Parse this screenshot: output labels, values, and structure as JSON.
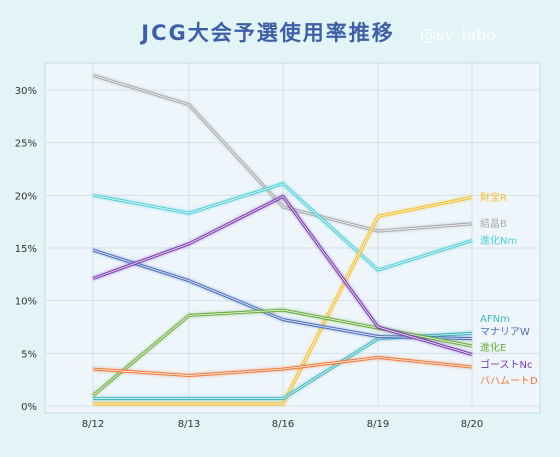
{
  "chart_data": {
    "type": "line",
    "title": "JCG大会予選使用率推移",
    "watermark": "@sv_labo",
    "categories": [
      "8/12",
      "8/13",
      "8/16",
      "8/19",
      "8/20"
    ],
    "ylim": [
      0,
      32
    ],
    "yticks": [
      0,
      5,
      10,
      15,
      20,
      25,
      30
    ],
    "ytick_labels": [
      "0%",
      "5%",
      "10%",
      "15%",
      "20%",
      "25%",
      "30%"
    ],
    "grid": true,
    "series": [
      {
        "name": "結晶B",
        "color": "#a9a9a9",
        "values": [
          31.4,
          28.6,
          18.9,
          16.6,
          17.3
        ]
      },
      {
        "name": "進化Nm",
        "color": "#4fcfd9",
        "values": [
          20.0,
          18.3,
          21.1,
          12.9,
          15.7
        ]
      },
      {
        "name": "財宝R",
        "color": "#f5c030",
        "values": [
          0.2,
          0.2,
          0.2,
          18.0,
          19.8
        ]
      },
      {
        "name": "AFNm",
        "color": "#3fb8c0",
        "values": [
          0.7,
          0.7,
          0.7,
          6.4,
          6.9
        ]
      },
      {
        "name": "マナリアW",
        "color": "#4a6fbf",
        "values": [
          14.8,
          11.9,
          8.2,
          6.6,
          6.4
        ]
      },
      {
        "name": "進化E",
        "color": "#6cae3e",
        "values": [
          1.0,
          8.6,
          9.1,
          7.4,
          5.7
        ]
      },
      {
        "name": "ゴーストNc",
        "color": "#7a3bb0",
        "values": [
          12.1,
          15.4,
          19.9,
          7.5,
          4.9
        ]
      },
      {
        "name": "バハムートD",
        "color": "#f07a3a",
        "values": [
          3.5,
          2.9,
          3.5,
          4.6,
          3.7
        ]
      }
    ]
  }
}
